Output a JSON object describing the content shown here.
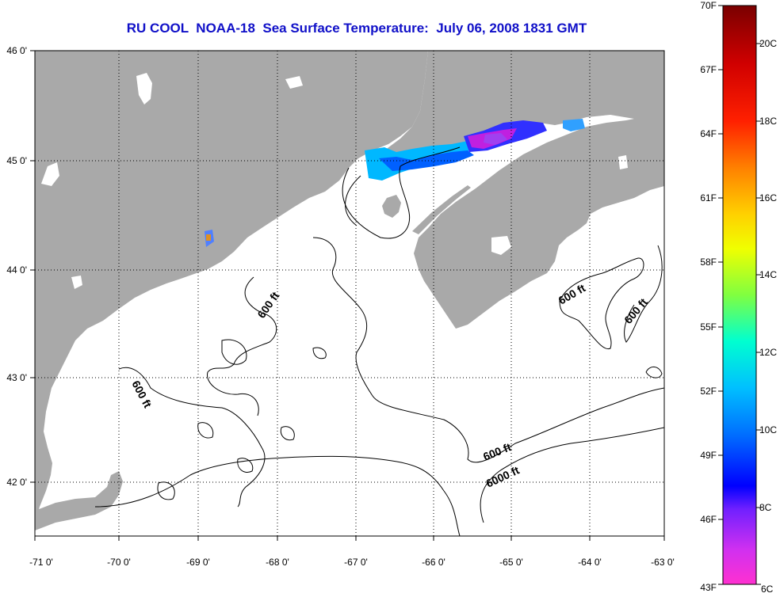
{
  "title": "RU COOL  NOAA-18  Sea Surface Temperature:  July 06, 2008 1831 GMT",
  "lat_labels": [
    "46 0'",
    "45 0'",
    "44 0'",
    "43 0'",
    "42 0'"
  ],
  "lon_labels": [
    "-71 0'",
    "-70 0'",
    "-69 0'",
    "-68 0'",
    "-67 0'",
    "-66 0'",
    "-65 0'",
    "-64 0'",
    "-63 0'"
  ],
  "contour_labels": [
    "600 ft",
    "600 ft",
    "600 ft",
    "600 ft",
    "600 ft",
    "6000 ft"
  ],
  "colorbar": {
    "fahrenheit": [
      "70F",
      "67F",
      "64F",
      "61F",
      "58F",
      "55F",
      "52F",
      "49F",
      "46F",
      "43F"
    ],
    "celsius": [
      "20C",
      "18C",
      "16C",
      "14C",
      "12C",
      "10C",
      "8C",
      "6C"
    ]
  },
  "colors": {
    "land": "#a9a9a9",
    "title": "#1010c8",
    "sea": "#ffffff"
  }
}
